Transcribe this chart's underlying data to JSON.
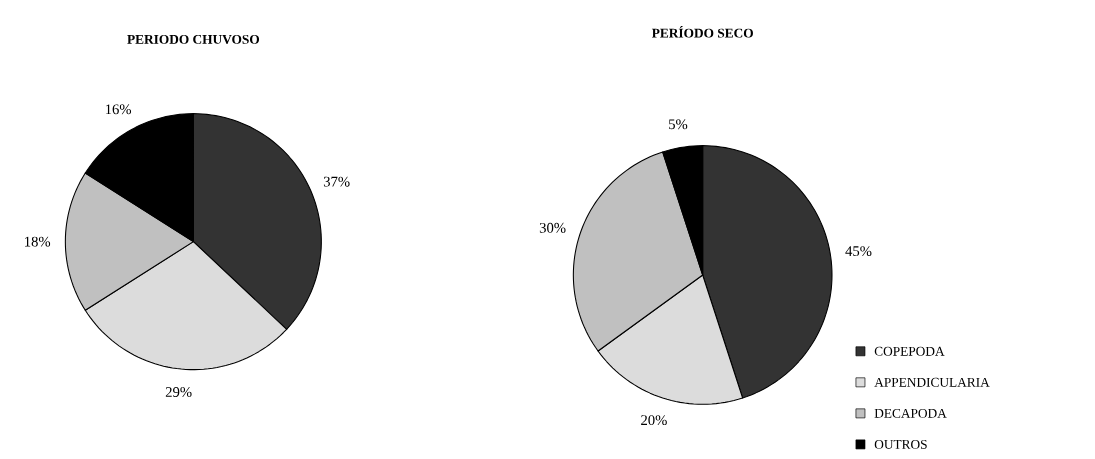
{
  "chart_data": [
    {
      "type": "pie",
      "title": "PERIODO CHUVOSO",
      "categories": [
        null,
        null,
        null,
        null
      ],
      "values": [
        37,
        29,
        18,
        16
      ],
      "value_labels": [
        "37%",
        "29%",
        "18%",
        "16%"
      ],
      "colors": [
        "#333333",
        "#dcdcdc",
        "#c0c0c0",
        "#000000"
      ]
    },
    {
      "type": "pie",
      "title": "PERÍODO SECO",
      "categories": [
        "COPEPODA",
        "APPENDICULARIA",
        "DECAPODA",
        "OUTROS"
      ],
      "values": [
        45,
        20,
        30,
        5
      ],
      "value_labels": [
        "45%",
        "20%",
        "30%",
        "5%"
      ],
      "colors": [
        "#333333",
        "#dcdcdc",
        "#c0c0c0",
        "#000000"
      ],
      "legend": "bottom right"
    }
  ]
}
